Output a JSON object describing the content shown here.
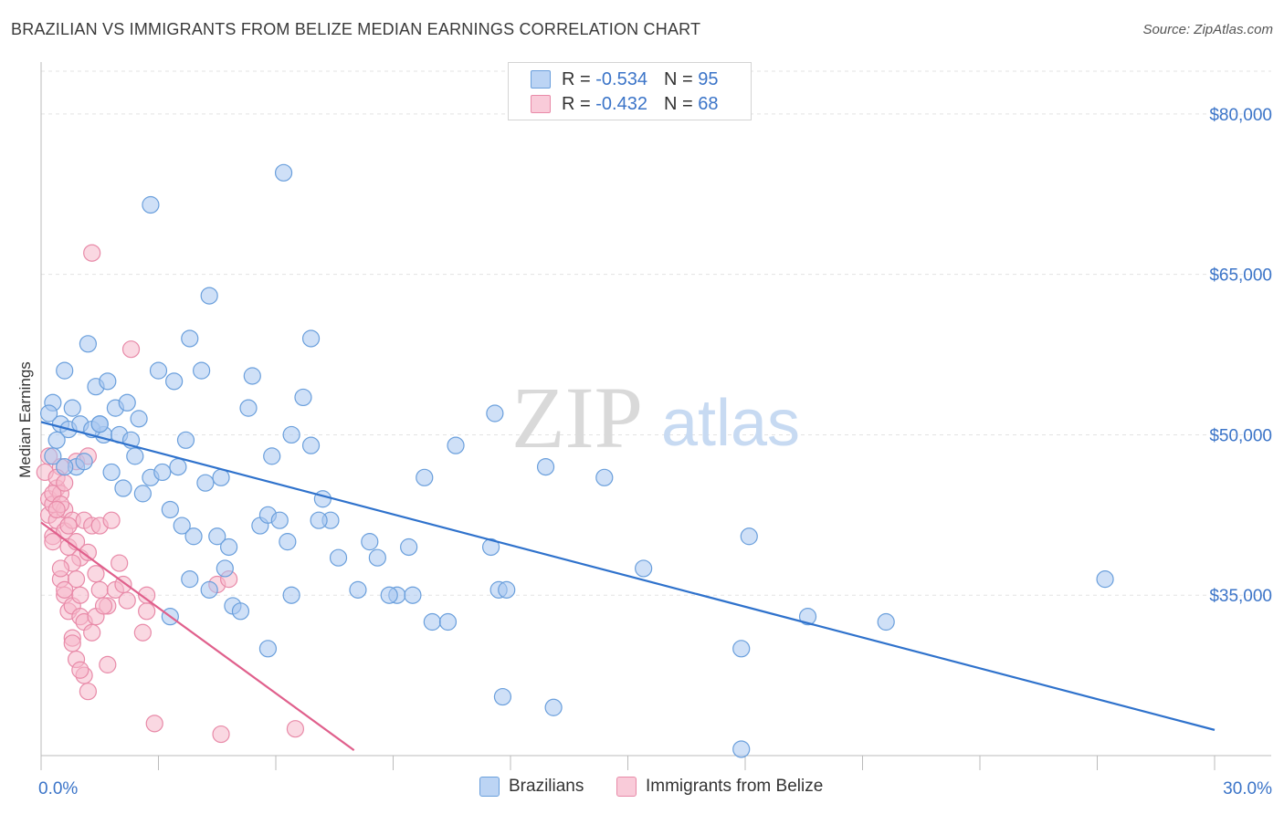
{
  "title": "BRAZILIAN VS IMMIGRANTS FROM BELIZE MEDIAN EARNINGS CORRELATION CHART",
  "source": "Source: ZipAtlas.com",
  "watermark": {
    "zip": "ZIP",
    "atlas": "atlas"
  },
  "legend": {
    "rows": [
      {
        "r_label": "R =",
        "r_value": "-0.534",
        "n_label": "N =",
        "n_value": "95",
        "color": "#a8c7f0"
      },
      {
        "r_label": "R =",
        "r_value": "-0.432",
        "n_label": "N =",
        "n_value": "68",
        "color": "#f5b8cb"
      }
    ]
  },
  "bottom_legend": {
    "series1": "Brazilians",
    "series2": "Immigrants from Belize"
  },
  "colors": {
    "blue_fill": "#a8c7f0",
    "blue_stroke": "#6a9fdc",
    "blue_line": "#2f72cc",
    "pink_fill": "#f5b8cb",
    "pink_stroke": "#e88aa8",
    "pink_line": "#e0608c",
    "axis_text": "#3b74c8",
    "grid": "#e3e3e3"
  },
  "chart_data": {
    "type": "scatter",
    "title": "BRAZILIAN VS IMMIGRANTS FROM BELIZE MEDIAN EARNINGS CORRELATION CHART",
    "xlabel": "",
    "ylabel": "Median Earnings",
    "xlim": [
      0,
      30
    ],
    "ylim": [
      20000,
      84000
    ],
    "x_tick_labels": [
      "0.0%",
      "30.0%"
    ],
    "y_ticks": [
      35000,
      50000,
      65000,
      80000
    ],
    "y_tick_labels": [
      "$35,000",
      "$50,000",
      "$65,000",
      "$80,000"
    ],
    "grid": true,
    "legend_position": "top-center",
    "series": [
      {
        "name": "Brazilians",
        "r": -0.534,
        "n": 95,
        "trend": {
          "x": [
            0,
            30
          ],
          "y": [
            51200,
            22400
          ]
        },
        "points": [
          [
            0.3,
            53000
          ],
          [
            0.3,
            48000
          ],
          [
            0.6,
            56000
          ],
          [
            0.8,
            52500
          ],
          [
            1.2,
            58500
          ],
          [
            1.4,
            54500
          ],
          [
            1.6,
            50000
          ],
          [
            1.8,
            46500
          ],
          [
            2.0,
            50000
          ],
          [
            2.8,
            71500
          ],
          [
            3.0,
            56000
          ],
          [
            3.4,
            55000
          ],
          [
            3.8,
            59000
          ],
          [
            4.3,
            63000
          ],
          [
            4.1,
            56000
          ],
          [
            5.4,
            55500
          ],
          [
            6.2,
            74500
          ],
          [
            6.4,
            50000
          ],
          [
            6.7,
            53500
          ],
          [
            6.9,
            49000
          ],
          [
            6.9,
            59000
          ],
          [
            0.5,
            51000
          ],
          [
            0.7,
            50500
          ],
          [
            1.0,
            51000
          ],
          [
            1.3,
            50500
          ],
          [
            1.5,
            51000
          ],
          [
            1.9,
            52500
          ],
          [
            2.3,
            49500
          ],
          [
            2.5,
            51500
          ],
          [
            2.8,
            46000
          ],
          [
            3.1,
            46500
          ],
          [
            3.5,
            47000
          ],
          [
            4.6,
            46000
          ],
          [
            0.9,
            47000
          ],
          [
            1.1,
            47500
          ],
          [
            2.1,
            45000
          ],
          [
            3.3,
            43000
          ],
          [
            3.6,
            41500
          ],
          [
            4.5,
            40500
          ],
          [
            4.8,
            39500
          ],
          [
            5.6,
            41500
          ],
          [
            5.8,
            42500
          ],
          [
            6.1,
            42000
          ],
          [
            7.2,
            44000
          ],
          [
            7.4,
            42000
          ],
          [
            7.6,
            38500
          ],
          [
            8.4,
            40000
          ],
          [
            8.6,
            38500
          ],
          [
            9.4,
            39500
          ],
          [
            3.3,
            33000
          ],
          [
            3.8,
            36500
          ],
          [
            4.3,
            35500
          ],
          [
            4.9,
            34000
          ],
          [
            5.1,
            33500
          ],
          [
            5.8,
            30000
          ],
          [
            6.4,
            35000
          ],
          [
            8.1,
            35500
          ],
          [
            9.1,
            35000
          ],
          [
            9.5,
            35000
          ],
          [
            10.0,
            32500
          ],
          [
            10.4,
            32500
          ],
          [
            11.7,
            35500
          ],
          [
            11.9,
            35500
          ],
          [
            10.6,
            49000
          ],
          [
            11.6,
            52000
          ],
          [
            12.9,
            47000
          ],
          [
            14.4,
            46000
          ],
          [
            11.5,
            39500
          ],
          [
            15.4,
            37500
          ],
          [
            18.1,
            40500
          ],
          [
            17.9,
            30000
          ],
          [
            19.6,
            33000
          ],
          [
            21.6,
            32500
          ],
          [
            27.2,
            36500
          ],
          [
            11.8,
            25500
          ],
          [
            13.1,
            24500
          ],
          [
            17.9,
            20600
          ],
          [
            1.5,
            51000
          ],
          [
            2.4,
            48000
          ],
          [
            0.2,
            52000
          ],
          [
            5.3,
            52500
          ],
          [
            3.9,
            40500
          ],
          [
            7.1,
            42000
          ],
          [
            9.8,
            46000
          ],
          [
            4.2,
            45500
          ],
          [
            2.6,
            44500
          ],
          [
            6.3,
            40000
          ],
          [
            8.9,
            35000
          ],
          [
            4.7,
            37500
          ],
          [
            0.6,
            47000
          ],
          [
            1.7,
            55000
          ],
          [
            3.7,
            49500
          ],
          [
            5.9,
            48000
          ],
          [
            0.4,
            49500
          ],
          [
            2.2,
            53000
          ]
        ]
      },
      {
        "name": "Immigrants from Belize",
        "r": -0.432,
        "n": 68,
        "trend": {
          "x": [
            0,
            8
          ],
          "y": [
            41800,
            20500
          ]
        },
        "points": [
          [
            0.1,
            46500
          ],
          [
            0.2,
            44000
          ],
          [
            0.2,
            42500
          ],
          [
            0.3,
            43500
          ],
          [
            0.3,
            40500
          ],
          [
            0.4,
            45000
          ],
          [
            0.4,
            42000
          ],
          [
            0.5,
            47000
          ],
          [
            0.5,
            44500
          ],
          [
            0.6,
            43000
          ],
          [
            0.6,
            41000
          ],
          [
            0.7,
            39500
          ],
          [
            0.8,
            42000
          ],
          [
            0.9,
            47500
          ],
          [
            0.9,
            40000
          ],
          [
            1.0,
            38500
          ],
          [
            1.1,
            42000
          ],
          [
            1.2,
            48000
          ],
          [
            1.3,
            41500
          ],
          [
            1.4,
            37000
          ],
          [
            1.5,
            35500
          ],
          [
            1.7,
            34000
          ],
          [
            1.9,
            35500
          ],
          [
            2.0,
            38000
          ],
          [
            2.1,
            36000
          ],
          [
            2.2,
            34500
          ],
          [
            2.6,
            31500
          ],
          [
            2.7,
            35000
          ],
          [
            1.3,
            67000
          ],
          [
            2.3,
            58000
          ],
          [
            0.5,
            36500
          ],
          [
            0.6,
            35000
          ],
          [
            0.7,
            33500
          ],
          [
            0.8,
            34000
          ],
          [
            1.0,
            33000
          ],
          [
            1.1,
            32500
          ],
          [
            1.4,
            33000
          ],
          [
            1.6,
            34000
          ],
          [
            0.8,
            31000
          ],
          [
            0.9,
            29000
          ],
          [
            1.1,
            27500
          ],
          [
            1.2,
            26000
          ],
          [
            1.7,
            28500
          ],
          [
            2.7,
            33500
          ],
          [
            2.9,
            23000
          ],
          [
            4.6,
            22000
          ],
          [
            4.5,
            36000
          ],
          [
            4.8,
            36500
          ],
          [
            6.5,
            22500
          ],
          [
            0.2,
            48000
          ],
          [
            0.3,
            44500
          ],
          [
            0.4,
            46000
          ],
          [
            0.5,
            43500
          ],
          [
            0.6,
            45500
          ],
          [
            0.7,
            41500
          ],
          [
            0.8,
            38000
          ],
          [
            0.9,
            36500
          ],
          [
            1.0,
            35000
          ],
          [
            1.2,
            39000
          ],
          [
            1.5,
            41500
          ],
          [
            1.8,
            42000
          ],
          [
            0.3,
            40000
          ],
          [
            0.4,
            43000
          ],
          [
            0.5,
            37500
          ],
          [
            0.6,
            35500
          ],
          [
            0.8,
            30500
          ],
          [
            1.0,
            28000
          ],
          [
            1.3,
            31500
          ]
        ]
      }
    ]
  }
}
